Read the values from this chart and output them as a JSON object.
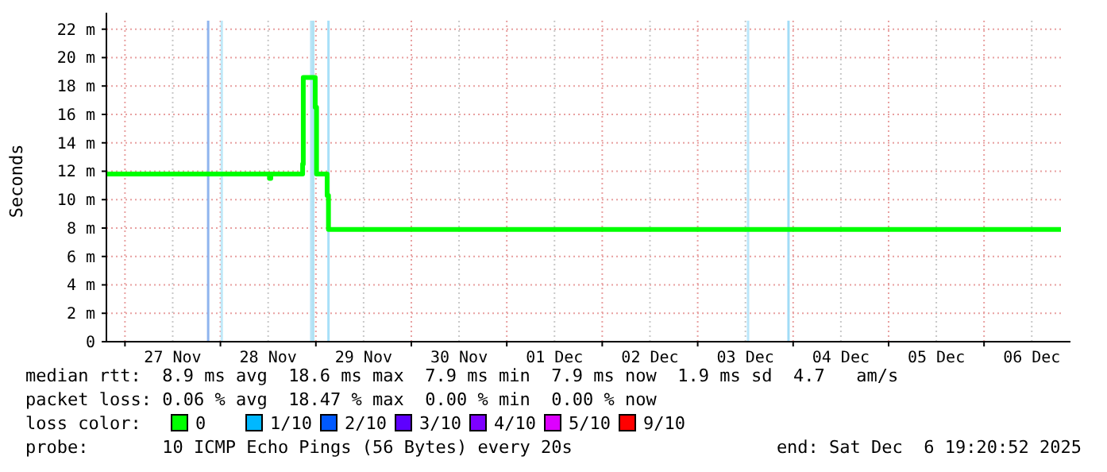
{
  "chart_data": {
    "type": "step",
    "ylabel": "Seconds",
    "x": [
      "2025-11-26T19:20",
      "2025-11-28T12:20",
      "2025-11-28T12:40",
      "2025-11-28T20:40",
      "2025-11-28T20:50",
      "2025-11-28T23:50",
      "2025-11-29T00:10",
      "2025-11-29T02:50",
      "2025-11-29T03:10",
      "2025-12-06T19:20"
    ],
    "series": [
      {
        "color": "#00ff00",
        "values": [
          11.8,
          11.5,
          11.8,
          12.5,
          18.6,
          16.5,
          11.8,
          10.3,
          7.9,
          7.9
        ]
      }
    ],
    "xlim": [
      "2025-11-26T19:20",
      "2025-12-06T19:20"
    ],
    "xticks": [
      {
        "value": "2025-11-27T00:00",
        "label": null
      },
      {
        "value": "2025-11-27T12:00",
        "label": "27 Nov"
      },
      {
        "value": "2025-11-28T00:00",
        "label": null
      },
      {
        "value": "2025-11-28T12:00",
        "label": "28 Nov"
      },
      {
        "value": "2025-11-29T00:00",
        "label": null
      },
      {
        "value": "2025-11-29T12:00",
        "label": "29 Nov"
      },
      {
        "value": "2025-11-30T00:00",
        "label": null
      },
      {
        "value": "2025-11-30T12:00",
        "label": "30 Nov"
      },
      {
        "value": "2025-12-01T00:00",
        "label": null
      },
      {
        "value": "2025-12-01T12:00",
        "label": "01 Dec"
      },
      {
        "value": "2025-12-02T00:00",
        "label": null
      },
      {
        "value": "2025-12-02T12:00",
        "label": "02 Dec"
      },
      {
        "value": "2025-12-03T00:00",
        "label": null
      },
      {
        "value": "2025-12-03T12:00",
        "label": "03 Dec"
      },
      {
        "value": "2025-12-04T00:00",
        "label": null
      },
      {
        "value": "2025-12-04T12:00",
        "label": "04 Dec"
      },
      {
        "value": "2025-12-05T00:00",
        "label": null
      },
      {
        "value": "2025-12-05T12:00",
        "label": "05 Dec"
      },
      {
        "value": "2025-12-06T00:00",
        "label": null
      },
      {
        "value": "2025-12-06T12:00",
        "label": "06 Dec"
      }
    ],
    "ylim": [
      0,
      22.6
    ],
    "yticks": [
      0,
      {
        "value": 2,
        "label": "2 m"
      },
      {
        "value": 4,
        "label": "4 m"
      },
      {
        "value": 6,
        "label": "6 m"
      },
      {
        "value": 8,
        "label": "8 m"
      },
      {
        "value": 10,
        "label": "10 m"
      },
      {
        "value": 12,
        "label": "12 m"
      },
      {
        "value": 14,
        "label": "14 m"
      },
      {
        "value": 16,
        "label": "16 m"
      },
      {
        "value": 18,
        "label": "18 m"
      },
      {
        "value": 20,
        "label": "20 m"
      },
      {
        "value": 22,
        "label": "22 m"
      }
    ],
    "ref_lines": [
      {
        "axis": "x",
        "value": "2025-11-27T20:55",
        "color": "#8fb4ee"
      },
      {
        "axis": "x",
        "value": "2025-11-28T00:20",
        "color": "#bfe8f8"
      },
      {
        "axis": "x",
        "value": "2025-11-28T22:50",
        "color": "#b8e4f6"
      },
      {
        "axis": "x",
        "value": "2025-11-28T23:20",
        "color": "#b0e2f4"
      },
      {
        "axis": "x",
        "value": "2025-11-29T03:10",
        "color": "#a8e0f8"
      },
      {
        "axis": "x",
        "value": "2025-12-03T12:40",
        "color": "#bae6fa"
      },
      {
        "axis": "x",
        "value": "2025-12-03T22:50",
        "color": "#a2dcf6"
      }
    ],
    "grid": true,
    "marker": "none",
    "line_style": "solid",
    "annotations": [
      "median rtt:  8.9 ms avg  18.6 ms max  7.9 ms min  7.9 ms now  1.9 ms sd  4.7   am/s",
      "packet loss: 0.06 % avg  18.47 % max  0.00 % min  0.00 % now",
      "loss color:",
      "0",
      "1/10",
      "2/10",
      "3/10",
      "4/10",
      "5/10",
      "9/10",
      "probe:       10 ICMP Echo Pings (56 Bytes) every 20s",
      "end: Sat Dec  6 19:20:52 2025"
    ]
  }
}
